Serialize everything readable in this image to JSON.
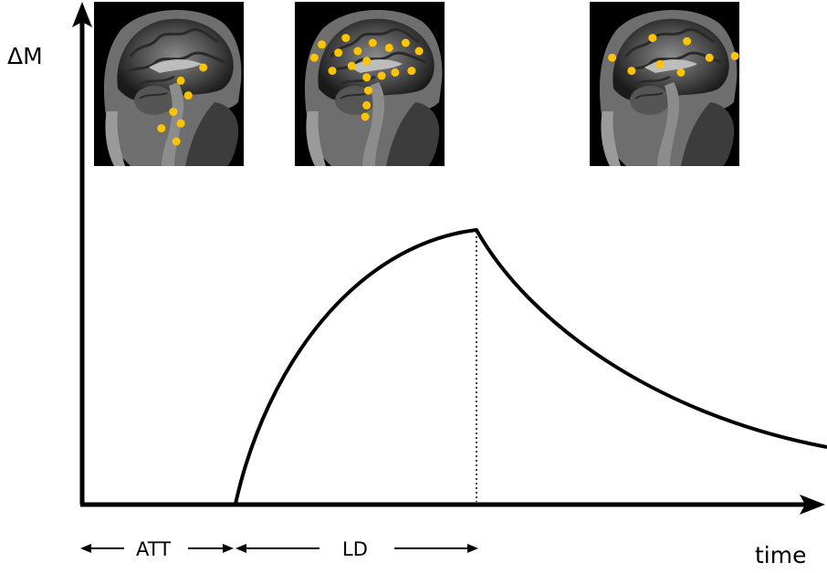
{
  "axes": {
    "y_label": "ΔM",
    "x_label": "time"
  },
  "intervals": {
    "att_label": "ATT",
    "ld_label": "LD"
  },
  "brain_panels": [
    {
      "dots": [
        [
          0.73,
          0.4
        ],
        [
          0.58,
          0.48
        ],
        [
          0.63,
          0.57
        ],
        [
          0.53,
          0.67
        ],
        [
          0.58,
          0.74
        ],
        [
          0.45,
          0.77
        ],
        [
          0.55,
          0.85
        ]
      ]
    },
    {
      "dots": [
        [
          0.18,
          0.26
        ],
        [
          0.34,
          0.22
        ],
        [
          0.13,
          0.34
        ],
        [
          0.29,
          0.31
        ],
        [
          0.42,
          0.3
        ],
        [
          0.52,
          0.25
        ],
        [
          0.63,
          0.28
        ],
        [
          0.74,
          0.25
        ],
        [
          0.83,
          0.3
        ],
        [
          0.25,
          0.42
        ],
        [
          0.38,
          0.39
        ],
        [
          0.48,
          0.36
        ],
        [
          0.58,
          0.45
        ],
        [
          0.67,
          0.43
        ],
        [
          0.78,
          0.42
        ],
        [
          0.48,
          0.46
        ],
        [
          0.49,
          0.54
        ],
        [
          0.48,
          0.63
        ],
        [
          0.47,
          0.7
        ]
      ]
    },
    {
      "dots": [
        [
          0.42,
          0.22
        ],
        [
          0.65,
          0.24
        ],
        [
          0.15,
          0.34
        ],
        [
          0.8,
          0.34
        ],
        [
          0.97,
          0.33
        ],
        [
          0.28,
          0.42
        ],
        [
          0.47,
          0.38
        ],
        [
          0.61,
          0.43
        ]
      ]
    }
  ],
  "colors": {
    "dot": "#ffc400",
    "curve": "#000000",
    "axis": "#000000"
  }
}
